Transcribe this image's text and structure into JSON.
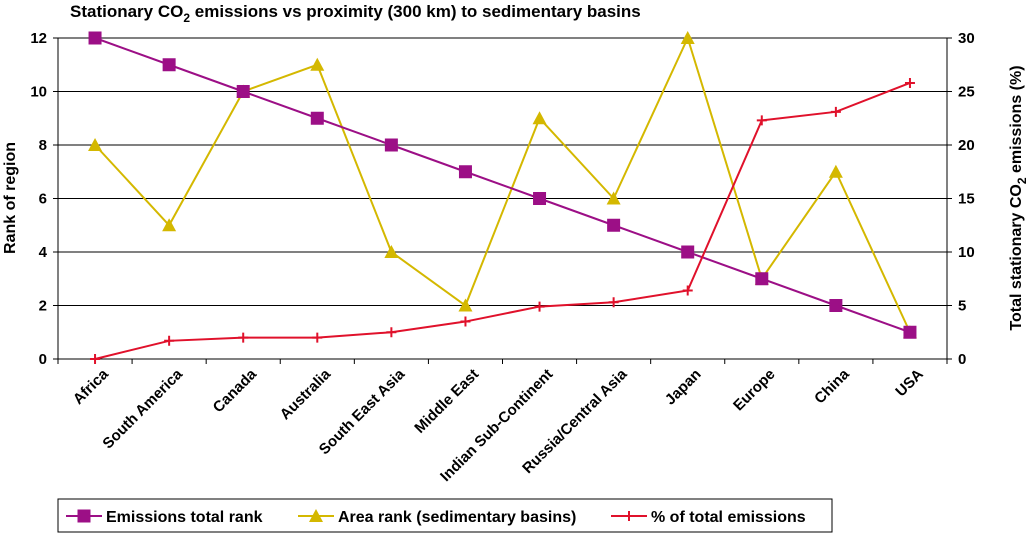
{
  "chart_data": {
    "type": "line",
    "title": "Stationary CO",
    "title_sub": "2",
    "title_rest": " emissions vs proximity (300 km) to sedimentary basins",
    "ylabel": "Rank of region",
    "y2label_pre": "Total stationary CO",
    "y2label_sub": "2",
    "y2label_post": " emissions (%)",
    "categories": [
      "Africa",
      "South America",
      "Canada",
      "Australia",
      "South East Asia",
      "Middle East",
      "Indian Sub-Continent",
      "Russia/Central Asia",
      "Japan",
      "Europe",
      "China",
      "USA"
    ],
    "ylim": [
      0,
      12
    ],
    "y_ticks": [
      "0",
      "2",
      "4",
      "6",
      "8",
      "10",
      "12"
    ],
    "y2lim": [
      0,
      30
    ],
    "y2_ticks": [
      "0",
      "5",
      "10",
      "15",
      "20",
      "25",
      "30"
    ],
    "grid": true,
    "legend_position": "bottom",
    "series": [
      {
        "name": "Emissions  total rank",
        "axis": "left",
        "marker": "square",
        "color": "#9c0f86",
        "values": [
          12,
          11,
          10,
          9,
          8,
          7,
          6,
          5,
          4,
          3,
          2,
          1
        ]
      },
      {
        "name": "Area rank (sedimentary basins)",
        "axis": "left",
        "marker": "triangle",
        "color": "#d4b800",
        "values": [
          8,
          5,
          10,
          11,
          4,
          2,
          9,
          6,
          12,
          3,
          7,
          1
        ]
      },
      {
        "name": "% of total emissions",
        "axis": "right",
        "marker": "plus",
        "color": "#e0112b",
        "values": [
          0,
          1.7,
          2.0,
          2.0,
          2.5,
          3.5,
          4.9,
          5.3,
          6.4,
          22.3,
          23.1,
          25.8
        ]
      }
    ]
  }
}
